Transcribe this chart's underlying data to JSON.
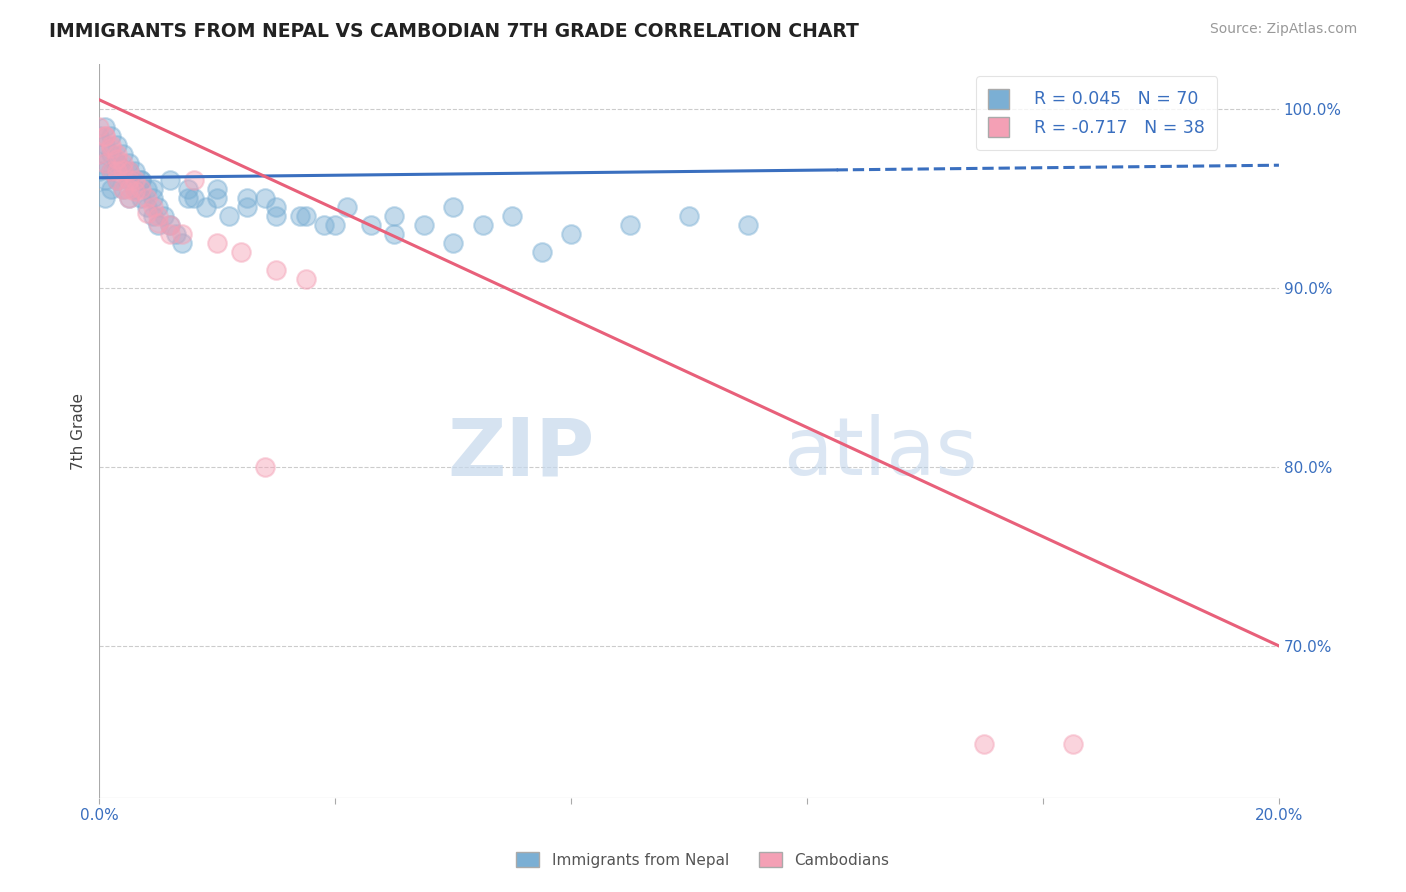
{
  "title": "IMMIGRANTS FROM NEPAL VS CAMBODIAN 7TH GRADE CORRELATION CHART",
  "source": "Source: ZipAtlas.com",
  "ylabel": "7th Grade",
  "xlim": [
    0.0,
    0.2
  ],
  "ylim": [
    0.615,
    1.025
  ],
  "yticks": [
    0.7,
    0.8,
    0.9,
    1.0
  ],
  "ytick_labels": [
    "70.0%",
    "80.0%",
    "90.0%",
    "100.0%"
  ],
  "nepal_R": 0.045,
  "nepal_N": 70,
  "cambodian_R": -0.717,
  "cambodian_N": 38,
  "nepal_color": "#7bafd4",
  "cambodian_color": "#f4a0b5",
  "trendline_nepal_color": "#3a6fbf",
  "trendline_cambodian_color": "#e8607a",
  "nepal_trend_x0": 0.0,
  "nepal_trend_y0": 0.9615,
  "nepal_trend_x1": 0.2,
  "nepal_trend_y1": 0.9685,
  "nepal_trend_split": 0.125,
  "camb_trend_x0": 0.0,
  "camb_trend_y0": 1.005,
  "camb_trend_x1": 0.2,
  "camb_trend_y1": 0.7,
  "watermark_zip": "ZIP",
  "watermark_atlas": "atlas",
  "nepal_scatter_x": [
    0.0,
    0.0,
    0.0,
    0.001,
    0.001,
    0.001,
    0.001,
    0.001,
    0.002,
    0.002,
    0.002,
    0.002,
    0.003,
    0.003,
    0.003,
    0.004,
    0.004,
    0.004,
    0.005,
    0.005,
    0.005,
    0.006,
    0.006,
    0.007,
    0.007,
    0.008,
    0.008,
    0.009,
    0.009,
    0.01,
    0.01,
    0.011,
    0.012,
    0.013,
    0.014,
    0.015,
    0.016,
    0.018,
    0.02,
    0.022,
    0.025,
    0.028,
    0.03,
    0.034,
    0.038,
    0.042,
    0.046,
    0.05,
    0.055,
    0.06,
    0.065,
    0.07,
    0.08,
    0.09,
    0.1,
    0.11,
    0.003,
    0.005,
    0.007,
    0.009,
    0.012,
    0.015,
    0.02,
    0.025,
    0.03,
    0.035,
    0.04,
    0.05,
    0.06,
    0.075
  ],
  "nepal_scatter_y": [
    0.985,
    0.975,
    0.965,
    0.99,
    0.98,
    0.97,
    0.96,
    0.95,
    0.985,
    0.975,
    0.965,
    0.955,
    0.98,
    0.97,
    0.96,
    0.975,
    0.965,
    0.955,
    0.97,
    0.96,
    0.95,
    0.965,
    0.955,
    0.96,
    0.95,
    0.955,
    0.945,
    0.95,
    0.94,
    0.945,
    0.935,
    0.94,
    0.935,
    0.93,
    0.925,
    0.955,
    0.95,
    0.945,
    0.95,
    0.94,
    0.945,
    0.95,
    0.94,
    0.94,
    0.935,
    0.945,
    0.935,
    0.94,
    0.935,
    0.945,
    0.935,
    0.94,
    0.93,
    0.935,
    0.94,
    0.935,
    0.97,
    0.965,
    0.96,
    0.955,
    0.96,
    0.95,
    0.955,
    0.95,
    0.945,
    0.94,
    0.935,
    0.93,
    0.925,
    0.92
  ],
  "camb_scatter_x": [
    0.0,
    0.0,
    0.001,
    0.001,
    0.002,
    0.002,
    0.003,
    0.003,
    0.004,
    0.004,
    0.005,
    0.005,
    0.006,
    0.007,
    0.008,
    0.009,
    0.01,
    0.012,
    0.014,
    0.016,
    0.02,
    0.024,
    0.03,
    0.035,
    0.001,
    0.002,
    0.003,
    0.004,
    0.005,
    0.006,
    0.008,
    0.01,
    0.012,
    0.028,
    0.15,
    0.165,
    0.003,
    0.005
  ],
  "camb_scatter_y": [
    0.99,
    0.975,
    0.985,
    0.97,
    0.98,
    0.965,
    0.975,
    0.96,
    0.97,
    0.955,
    0.965,
    0.95,
    0.96,
    0.955,
    0.95,
    0.945,
    0.94,
    0.935,
    0.93,
    0.96,
    0.925,
    0.92,
    0.91,
    0.905,
    0.985,
    0.978,
    0.972,
    0.966,
    0.96,
    0.954,
    0.942,
    0.936,
    0.93,
    0.8,
    0.645,
    0.645,
    0.965,
    0.955
  ]
}
